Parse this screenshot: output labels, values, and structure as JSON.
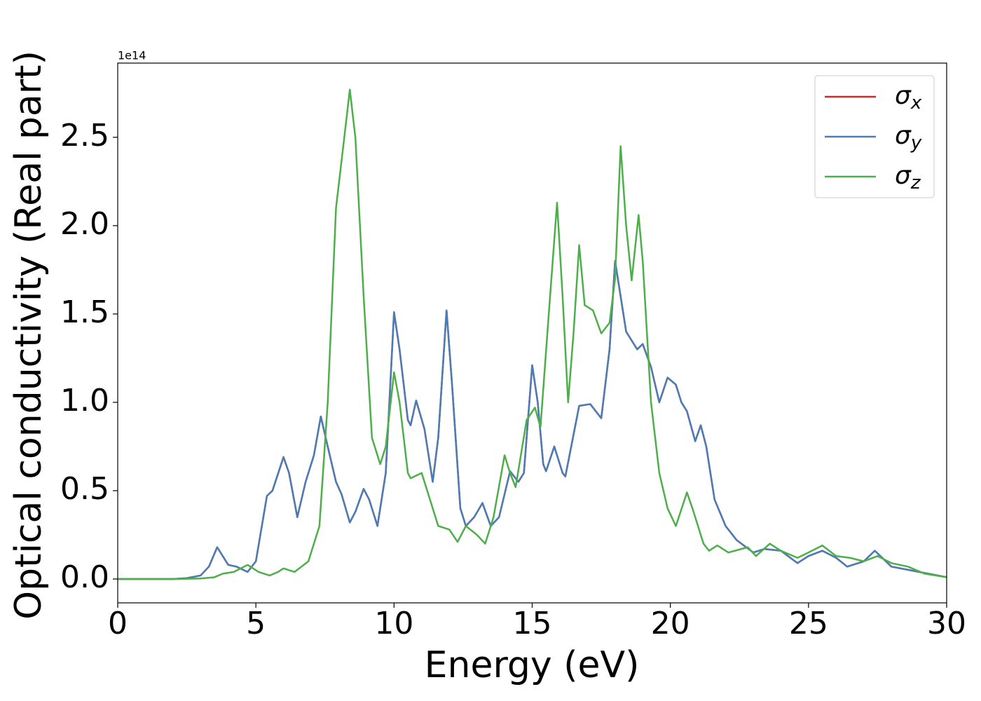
{
  "chart_data": {
    "type": "line",
    "xlabel": "Energy (eV)",
    "ylabel": "Optical conductivity (Real part)",
    "y_offset_label": "1e14",
    "xlim": [
      0,
      30
    ],
    "ylim": [
      -0.135,
      2.92
    ],
    "xticks": [
      0,
      5,
      10,
      15,
      20,
      25,
      30
    ],
    "yticks": [
      {
        "value": 0,
        "label": "0.0"
      },
      0.5,
      {
        "value": 1,
        "label": "1.0"
      },
      1.5,
      {
        "value": 2,
        "label": "2.0"
      },
      2.5
    ],
    "legend": "upper right",
    "grid": false,
    "series": [
      {
        "name": "σx",
        "color": "#d62728",
        "x": [
          0,
          1,
          2,
          2.5,
          3,
          3.3,
          3.6,
          4.0,
          4.3,
          4.7,
          5.0,
          5.4,
          5.6,
          6.0,
          6.2,
          6.5,
          6.8,
          7.1,
          7.35,
          7.6,
          7.9,
          8.1,
          8.4,
          8.6,
          8.9,
          9.1,
          9.4,
          9.7,
          10.0,
          10.2,
          10.5,
          10.6,
          10.8,
          11.1,
          11.4,
          11.6,
          11.9,
          12.1,
          12.4,
          12.6,
          12.9,
          13.2,
          13.5,
          13.8,
          14.2,
          14.5,
          14.7,
          15.0,
          15.2,
          15.4,
          15.5,
          15.8,
          16.1,
          16.2,
          16.7,
          17.1,
          17.5,
          17.8,
          18.0,
          18.2,
          18.4,
          18.8,
          19.0,
          19.3,
          19.6,
          19.9,
          20.2,
          20.4,
          20.6,
          20.9,
          21.1,
          21.3,
          21.6,
          22.0,
          22.4,
          23.0,
          23.4,
          24.0,
          24.6,
          25.0,
          25.5,
          26.0,
          26.4,
          27.0,
          27.4,
          28.0,
          29.0,
          30
        ],
        "values": [
          0,
          0,
          0,
          0.005,
          0.02,
          0.07,
          0.18,
          0.08,
          0.07,
          0.04,
          0.1,
          0.47,
          0.5,
          0.69,
          0.6,
          0.35,
          0.55,
          0.7,
          0.92,
          0.75,
          0.55,
          0.48,
          0.32,
          0.38,
          0.51,
          0.45,
          0.3,
          0.6,
          1.51,
          1.3,
          0.9,
          0.87,
          1.01,
          0.85,
          0.55,
          0.8,
          1.52,
          1.1,
          0.4,
          0.3,
          0.35,
          0.43,
          0.3,
          0.35,
          0.61,
          0.55,
          0.6,
          1.21,
          1.0,
          0.65,
          0.61,
          0.75,
          0.6,
          0.58,
          0.98,
          0.99,
          0.91,
          1.3,
          1.8,
          1.6,
          1.4,
          1.3,
          1.33,
          1.2,
          1.0,
          1.14,
          1.1,
          1.0,
          0.95,
          0.78,
          0.87,
          0.75,
          0.45,
          0.3,
          0.22,
          0.15,
          0.17,
          0.16,
          0.09,
          0.13,
          0.16,
          0.12,
          0.07,
          0.1,
          0.16,
          0.07,
          0.04,
          0.01
        ]
      },
      {
        "name": "σy",
        "color": "#4a7db5",
        "x": [
          0,
          1,
          2,
          2.5,
          3,
          3.3,
          3.6,
          4.0,
          4.3,
          4.7,
          5.0,
          5.4,
          5.6,
          6.0,
          6.2,
          6.5,
          6.8,
          7.1,
          7.35,
          7.6,
          7.9,
          8.1,
          8.4,
          8.6,
          8.9,
          9.1,
          9.4,
          9.7,
          10.0,
          10.2,
          10.5,
          10.6,
          10.8,
          11.1,
          11.4,
          11.6,
          11.9,
          12.1,
          12.4,
          12.6,
          12.9,
          13.2,
          13.5,
          13.8,
          14.2,
          14.5,
          14.7,
          15.0,
          15.2,
          15.4,
          15.5,
          15.8,
          16.1,
          16.2,
          16.7,
          17.1,
          17.5,
          17.8,
          18.0,
          18.2,
          18.4,
          18.8,
          19.0,
          19.3,
          19.6,
          19.9,
          20.2,
          20.4,
          20.6,
          20.9,
          21.1,
          21.3,
          21.6,
          22.0,
          22.4,
          23.0,
          23.4,
          24.0,
          24.6,
          25.0,
          25.5,
          26.0,
          26.4,
          27.0,
          27.4,
          28.0,
          29.0,
          30
        ],
        "values": [
          0,
          0,
          0,
          0.005,
          0.02,
          0.07,
          0.18,
          0.08,
          0.07,
          0.04,
          0.1,
          0.47,
          0.5,
          0.69,
          0.6,
          0.35,
          0.55,
          0.7,
          0.92,
          0.75,
          0.55,
          0.48,
          0.32,
          0.38,
          0.51,
          0.45,
          0.3,
          0.6,
          1.51,
          1.3,
          0.9,
          0.87,
          1.01,
          0.85,
          0.55,
          0.8,
          1.52,
          1.1,
          0.4,
          0.3,
          0.35,
          0.43,
          0.3,
          0.35,
          0.61,
          0.55,
          0.6,
          1.21,
          1.0,
          0.65,
          0.61,
          0.75,
          0.6,
          0.58,
          0.98,
          0.99,
          0.91,
          1.3,
          1.8,
          1.6,
          1.4,
          1.3,
          1.33,
          1.2,
          1.0,
          1.14,
          1.1,
          1.0,
          0.95,
          0.78,
          0.87,
          0.75,
          0.45,
          0.3,
          0.22,
          0.15,
          0.17,
          0.16,
          0.09,
          0.13,
          0.16,
          0.12,
          0.07,
          0.1,
          0.16,
          0.07,
          0.04,
          0.01
        ]
      },
      {
        "name": "σz",
        "color": "#4daf4a",
        "x": [
          0,
          1,
          2,
          3,
          3.5,
          3.8,
          4.2,
          4.7,
          5.1,
          5.5,
          5.8,
          6.0,
          6.4,
          6.9,
          7.3,
          7.6,
          7.9,
          8.2,
          8.4,
          8.6,
          8.9,
          9.2,
          9.5,
          9.7,
          10.0,
          10.2,
          10.5,
          10.6,
          11.0,
          11.3,
          11.6,
          12.0,
          12.3,
          12.6,
          13.0,
          13.3,
          13.6,
          14.0,
          14.2,
          14.4,
          14.8,
          15.1,
          15.3,
          15.6,
          15.9,
          16.1,
          16.3,
          16.5,
          16.7,
          16.9,
          17.2,
          17.5,
          17.8,
          18.0,
          18.2,
          18.4,
          18.6,
          18.85,
          19.0,
          19.3,
          19.6,
          19.9,
          20.2,
          20.6,
          20.8,
          21.2,
          21.4,
          21.7,
          22.1,
          22.8,
          23.1,
          23.6,
          24.0,
          24.6,
          25.0,
          25.5,
          26.0,
          26.5,
          27.0,
          27.5,
          28.0,
          28.6,
          29.2,
          30
        ],
        "values": [
          0,
          0,
          0,
          0.003,
          0.01,
          0.03,
          0.04,
          0.08,
          0.04,
          0.02,
          0.04,
          0.06,
          0.04,
          0.1,
          0.3,
          1.0,
          2.1,
          2.5,
          2.77,
          2.5,
          1.6,
          0.8,
          0.65,
          0.75,
          1.17,
          1.0,
          0.6,
          0.57,
          0.6,
          0.45,
          0.3,
          0.28,
          0.21,
          0.3,
          0.25,
          0.2,
          0.35,
          0.7,
          0.6,
          0.52,
          0.9,
          0.97,
          0.86,
          1.5,
          2.13,
          1.6,
          1.0,
          1.4,
          1.89,
          1.55,
          1.52,
          1.39,
          1.45,
          1.7,
          2.45,
          2.0,
          1.69,
          2.06,
          1.8,
          1.0,
          0.6,
          0.4,
          0.3,
          0.49,
          0.4,
          0.2,
          0.16,
          0.19,
          0.15,
          0.18,
          0.13,
          0.2,
          0.16,
          0.12,
          0.15,
          0.19,
          0.13,
          0.12,
          0.1,
          0.13,
          0.09,
          0.07,
          0.03,
          0.01
        ]
      }
    ]
  }
}
